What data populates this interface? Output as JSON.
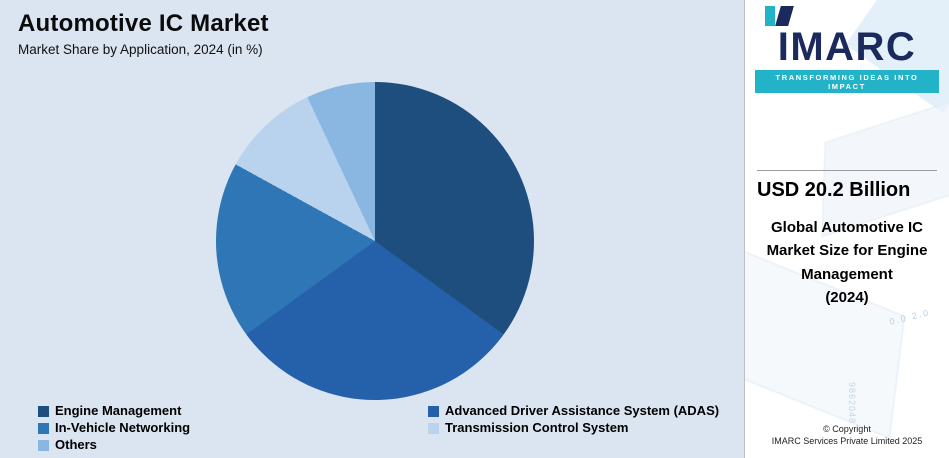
{
  "header": {
    "title": "Automotive IC Market",
    "subtitle": "Market Share by Application, 2024 (in %)"
  },
  "chart_data": {
    "type": "pie",
    "title": "Automotive IC Market",
    "subtitle": "Market Share by Application, 2024 (in %)",
    "labels": [
      "Engine Management",
      "Advanced Driver Assistance System (ADAS)",
      "In-Vehicle Networking",
      "Transmission Control System",
      "Others"
    ],
    "values": [
      35,
      30,
      18,
      10,
      7
    ],
    "colors": [
      "#1d4e7e",
      "#2560ab",
      "#2e76b5",
      "#b9d2ee",
      "#8ab6e2"
    ],
    "legend_position": "bottom",
    "start_angle_deg": 0,
    "direction": "clockwise"
  },
  "sidebar": {
    "logo_text": "IMARC",
    "tagline": "TRANSFORMING IDEAS INTO IMPACT",
    "stat_value": "USD 20.2 Billion",
    "stat_label": "Global Automotive IC\nMarket Size for Engine\nManagement\n(2024)",
    "copyright_line1": "© Copyright",
    "copyright_line2": "IMARC Services Private Limited 2025",
    "watermark_numbers_mid": "0.0  2.0",
    "watermark_numbers_bottom": "9862048"
  }
}
